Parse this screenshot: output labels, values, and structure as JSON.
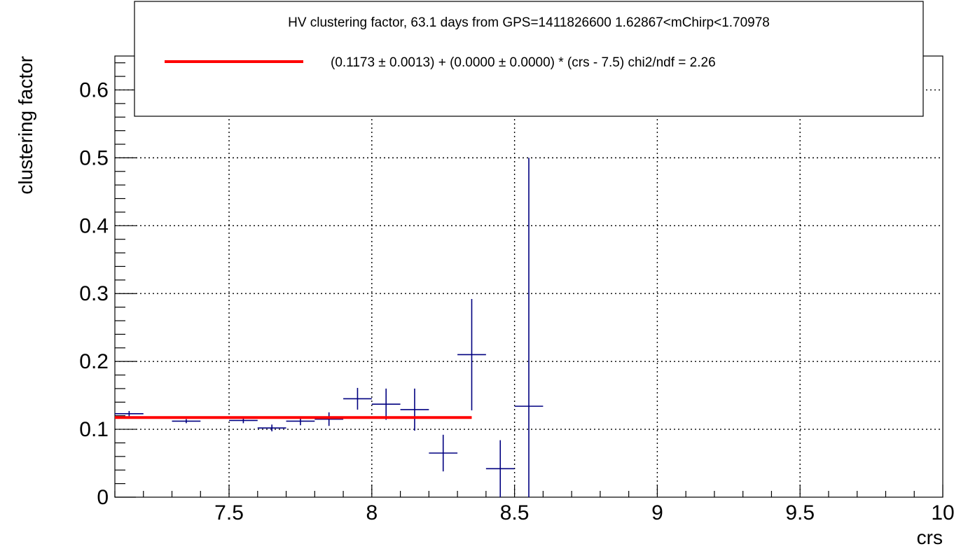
{
  "chart_data": {
    "type": "scatter",
    "title": "HV clustering factor, 63.1 days from GPS=1411826600 1.62867<mChirp<1.70978",
    "xlabel": "crs",
    "ylabel": "clustering factor",
    "xlim": [
      7.1,
      10.0
    ],
    "ylim": [
      0.0,
      0.65
    ],
    "grid": true,
    "x_ticks": [
      {
        "value": 7.5,
        "label": "7.5"
      },
      {
        "value": 8.0,
        "label": "8"
      },
      {
        "value": 8.5,
        "label": "8.5"
      },
      {
        "value": 9.0,
        "label": "9"
      },
      {
        "value": 9.5,
        "label": "9.5"
      },
      {
        "value": 10.0,
        "label": "10"
      }
    ],
    "y_ticks": [
      {
        "value": 0.0,
        "label": "0"
      },
      {
        "value": 0.1,
        "label": "0.1"
      },
      {
        "value": 0.2,
        "label": "0.2"
      },
      {
        "value": 0.3,
        "label": "0.3"
      },
      {
        "value": 0.4,
        "label": "0.4"
      },
      {
        "value": 0.5,
        "label": "0.5"
      },
      {
        "value": 0.6,
        "label": "0.6"
      }
    ],
    "series": [
      {
        "kind": "errorbars",
        "color": "#000080",
        "points": [
          {
            "x": 7.15,
            "y": 0.123,
            "xerr": 0.05,
            "yerr": 0.004
          },
          {
            "x": 7.35,
            "y": 0.112,
            "xerr": 0.05,
            "yerr": 0.003
          },
          {
            "x": 7.55,
            "y": 0.113,
            "xerr": 0.05,
            "yerr": 0.004
          },
          {
            "x": 7.65,
            "y": 0.102,
            "xerr": 0.05,
            "yerr": 0.005
          },
          {
            "x": 7.75,
            "y": 0.112,
            "xerr": 0.05,
            "yerr": 0.006
          },
          {
            "x": 7.85,
            "y": 0.115,
            "xerr": 0.05,
            "yerr": 0.01
          },
          {
            "x": 7.95,
            "y": 0.145,
            "xerr": 0.05,
            "yerr": 0.016
          },
          {
            "x": 8.05,
            "y": 0.137,
            "xerr": 0.05,
            "yerr": 0.023
          },
          {
            "x": 8.15,
            "y": 0.129,
            "xerr": 0.05,
            "yerr": 0.031
          },
          {
            "x": 8.25,
            "y": 0.065,
            "xerr": 0.05,
            "yerr": 0.027
          },
          {
            "x": 8.35,
            "y": 0.21,
            "xerr": 0.05,
            "yerr": 0.082
          },
          {
            "x": 8.45,
            "y": 0.042,
            "xerr": 0.05,
            "yerr": 0.042
          },
          {
            "x": 8.55,
            "y": 0.134,
            "xerr": 0.05,
            "yerr": 0.366
          }
        ]
      },
      {
        "kind": "fit-line",
        "color": "#ff0000",
        "x": [
          7.1,
          8.35
        ],
        "y": [
          0.1173,
          0.1173
        ]
      }
    ],
    "legend": {
      "position": "top",
      "entry": "(0.1173 ± 0.0013) + (0.0000 ± 0.0000) * (crs - 7.5) chi2/ndf = 2.26"
    }
  }
}
